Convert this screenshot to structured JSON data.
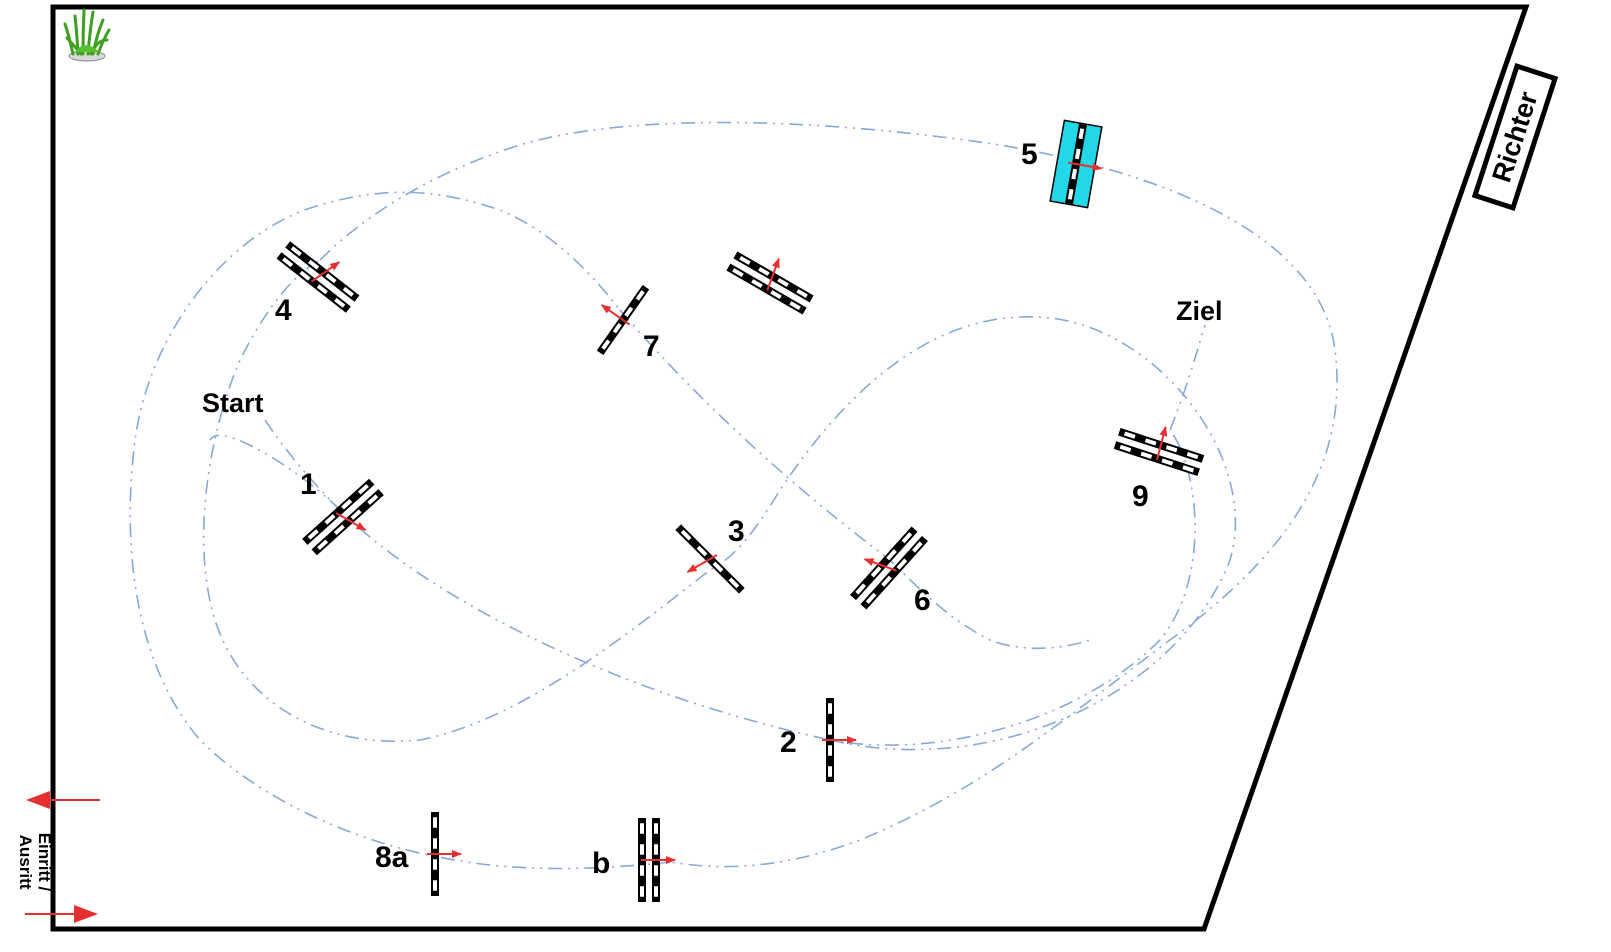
{
  "labels": {
    "start": "Start",
    "finish": "Ziel",
    "judge": "Richter",
    "entry_line1": "Einritt /",
    "entry_line2": "Ausritt"
  },
  "obstacles": [
    {
      "id": "o1",
      "label": "1",
      "type": "oxer"
    },
    {
      "id": "o2",
      "label": "2",
      "type": "vertical"
    },
    {
      "id": "o3",
      "label": "3",
      "type": "vertical"
    },
    {
      "id": "o4",
      "label": "4",
      "type": "oxer"
    },
    {
      "id": "o5",
      "label": "5",
      "type": "oxer",
      "color": "#22d8e8"
    },
    {
      "id": "o6",
      "label": "6",
      "type": "oxer"
    },
    {
      "id": "o7",
      "label": "7",
      "type": "vertical"
    },
    {
      "id": "o8a",
      "label": "8a",
      "type": "vertical"
    },
    {
      "id": "o8b",
      "label": "b",
      "type": "oxer"
    },
    {
      "id": "o9",
      "label": "9",
      "type": "oxer"
    },
    {
      "id": "ox",
      "label": "",
      "type": "oxer"
    }
  ],
  "colors": {
    "path": "#8aa9d6",
    "arrow": "#e53030",
    "border": "#000000",
    "water_oxer": "#22d8e8"
  },
  "icons": {
    "plant": "grass-plant-icon"
  }
}
